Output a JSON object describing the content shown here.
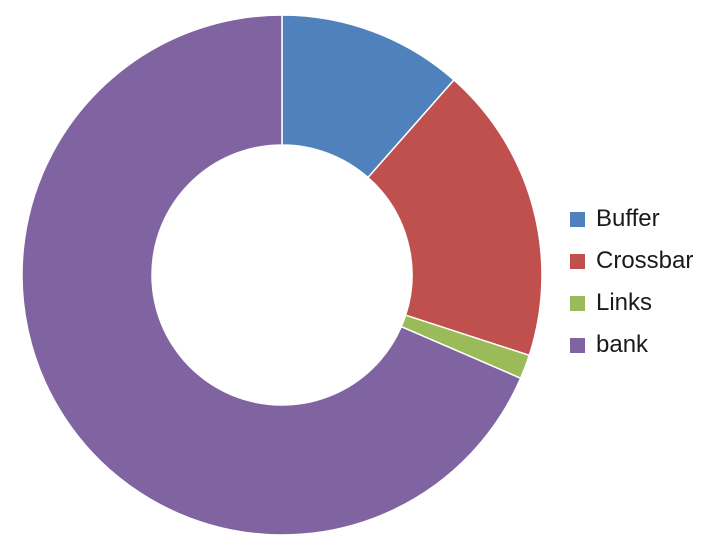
{
  "chart_data": {
    "type": "pie",
    "donut": true,
    "title": "",
    "legend_position": "right",
    "categories": [
      "Buffer",
      "Crossbar",
      "Links",
      "bank"
    ],
    "values": [
      11.5,
      18.5,
      1.5,
      68.5
    ],
    "colors": [
      "#4f81bd",
      "#c0504d",
      "#9bbb59",
      "#8064a2"
    ],
    "start": "top",
    "direction": "clockwise"
  }
}
